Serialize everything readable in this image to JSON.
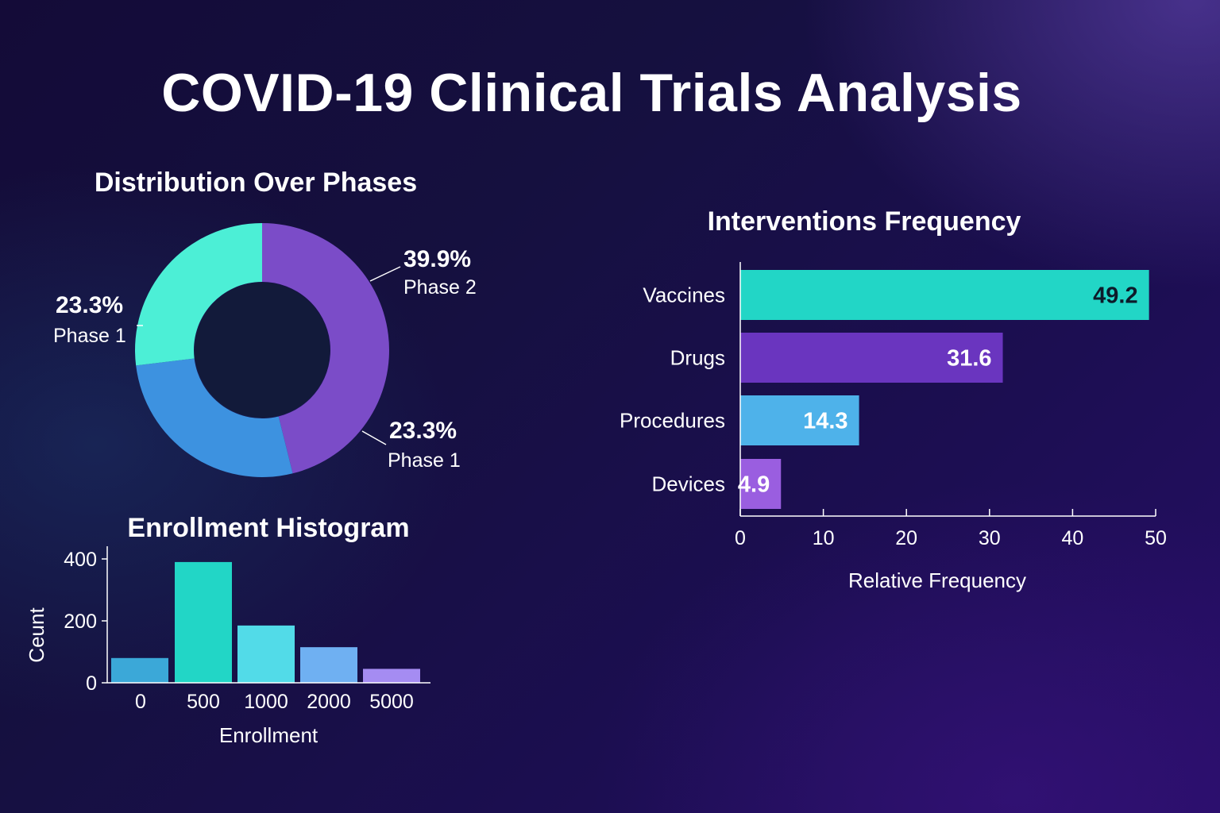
{
  "title": "COVID-19 Clinical Trials Analysis",
  "chart_data": [
    {
      "type": "pie",
      "variant": "donut",
      "title": "Distribution Over Phases",
      "slices": [
        {
          "label": "Phase 2",
          "value": 39.9,
          "value_text": "39.9%",
          "color": "#7b4cc8"
        },
        {
          "label": "Phase 1",
          "value": 23.3,
          "value_text": "23.3%",
          "color": "#3d92e0"
        },
        {
          "label": "Phase 1",
          "value": 23.3,
          "value_text": "23.3%",
          "color": "#4cefd6"
        }
      ]
    },
    {
      "type": "bar",
      "orientation": "horizontal",
      "title": "Interventions Frequency",
      "categories": [
        "Vaccines",
        "Drugs",
        "Procedures",
        "Devices"
      ],
      "values": [
        49.2,
        31.6,
        14.3,
        4.9
      ],
      "value_labels": [
        "49.2",
        "31.6",
        "14.3",
        "4.9"
      ],
      "colors": [
        "#22d6c6",
        "#6a35bf",
        "#4eb2ea",
        "#9a5ee0"
      ],
      "label_colors": [
        "#0d1b2a",
        "#ffffff",
        "#ffffff",
        "#ffffff"
      ],
      "xlabel": "Relative Frequency",
      "xlim": [
        0,
        50
      ],
      "xticks": [
        0,
        10,
        20,
        30,
        40,
        50
      ]
    },
    {
      "type": "bar",
      "title": "Enrollment Histogram",
      "categories": [
        "0",
        "500",
        "1000",
        "2000",
        "5000"
      ],
      "values": [
        80,
        390,
        185,
        115,
        45
      ],
      "colors": [
        "#3ba8d8",
        "#22d6c6",
        "#52dbe8",
        "#6fb0f2",
        "#a58cf2"
      ],
      "xlabel": "Enrollment",
      "ylabel": "Ceunt",
      "ylim": [
        0,
        400
      ],
      "yticks": [
        0,
        200,
        400
      ]
    }
  ]
}
